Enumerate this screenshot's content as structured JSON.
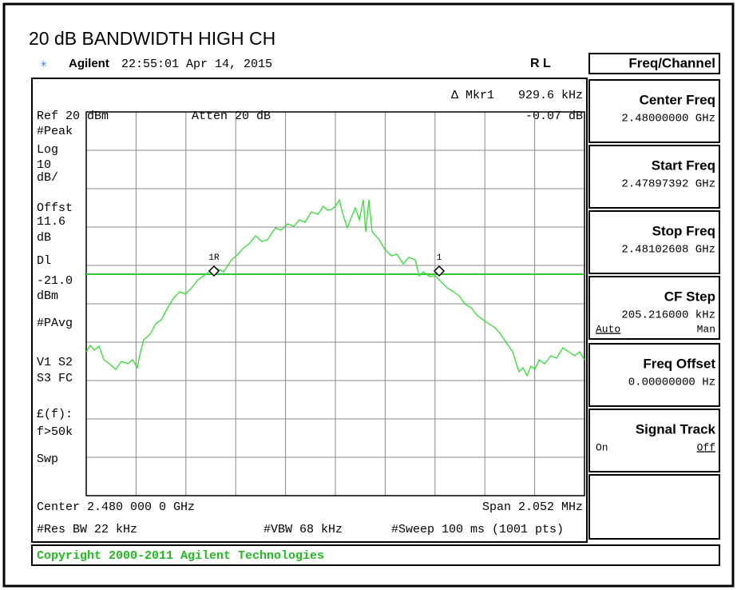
{
  "header": {
    "title": "20 dB BANDWIDTH HIGH CH",
    "brand": "Agilent",
    "timestamp": "22:55:01  Apr 14, 2015",
    "status": "R L"
  },
  "marker": {
    "label": "Δ Mkr1",
    "freq": "929.6 kHz",
    "level": "-0.07 dB",
    "tags": [
      "1R",
      "1"
    ]
  },
  "settings": {
    "ref": "Ref 20 dBm",
    "atten": "Atten 20 dB"
  },
  "left_labels": [
    "#Peak",
    "Log",
    "10",
    "dB/",
    "Offst",
    "11.6",
    "dB",
    "Dl",
    "-21.0",
    "dBm",
    "#PAvg",
    "V1  S2",
    "S3  FC",
    "£(f):",
    "f>50k",
    "Swp"
  ],
  "footer": {
    "center": "Center 2.480 000 0 GHz",
    "span": "Span 2.052 MHz",
    "rbw": "#Res BW 22 kHz",
    "vbw": "#VBW 68 kHz",
    "sweep": "#Sweep 100 ms (1001 pts)"
  },
  "copyright": "Copyright 2000-2011 Agilent Technologies",
  "menu": {
    "title": "Freq/Channel",
    "keys": [
      {
        "label": "Center Freq",
        "value": "2.48000000 GHz"
      },
      {
        "label": "Start Freq",
        "value": "2.47897392 GHz"
      },
      {
        "label": "Stop Freq",
        "value": "2.48102608 GHz"
      },
      {
        "label": "CF Step",
        "value": "205.216000 kHz",
        "left": "Auto",
        "right": "Man"
      },
      {
        "label": "Freq Offset",
        "value": "0.00000000  Hz"
      },
      {
        "label": "Signal Track",
        "left": "On",
        "right": "Off"
      }
    ]
  }
}
